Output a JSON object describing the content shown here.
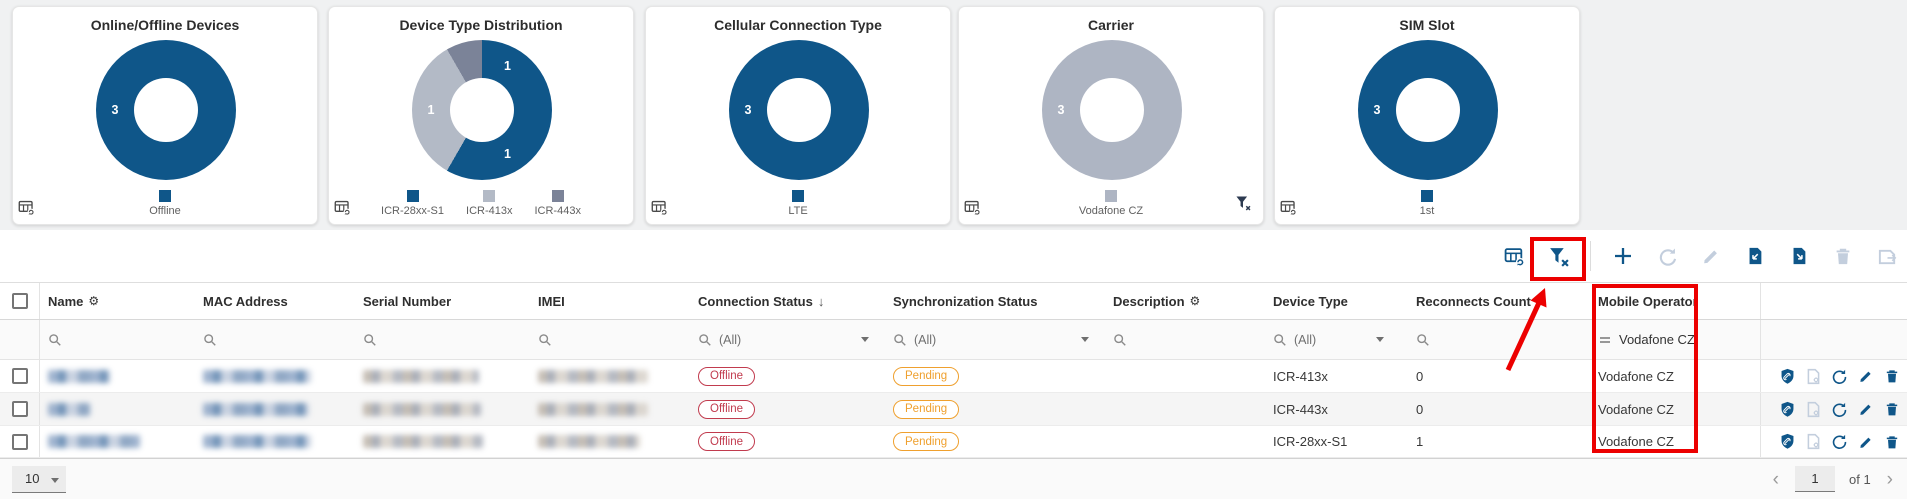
{
  "colors": {
    "brand_blue": "#0f5689",
    "light_slate": "#b3bac6",
    "dark_slate": "#7b8398",
    "annotation_red": "#ec0000",
    "offline_red": "#c13b4e",
    "pending_amber": "#efa02e",
    "disabled_icon": "#c3cedd"
  },
  "cards": [
    {
      "title": "Online/Offline Devices",
      "segments": [
        {
          "label": "Offline",
          "value": 3,
          "color": "#0f5689"
        }
      ]
    },
    {
      "title": "Device Type Distribution",
      "segments": [
        {
          "label": "ICR-28xx-S1",
          "value": 1,
          "color": "#0f5689"
        },
        {
          "label": "ICR-413x",
          "value": 1,
          "color": "#b3bac6"
        },
        {
          "label": "ICR-443x",
          "value": 1,
          "color": "#7b8398"
        }
      ]
    },
    {
      "title": "Cellular Connection Type",
      "segments": [
        {
          "label": "LTE",
          "value": 3,
          "color": "#0f5689"
        }
      ]
    },
    {
      "title": "Carrier",
      "has_filter_clear_icon": true,
      "segments": [
        {
          "label": "Vodafone CZ",
          "value": 3,
          "color": "#aeb5c3"
        }
      ]
    },
    {
      "title": "SIM Slot",
      "segments": [
        {
          "label": "1st",
          "value": 3,
          "color": "#0f5689"
        }
      ]
    }
  ],
  "chart_data": [
    {
      "type": "pie",
      "title": "Online/Offline Devices",
      "labels": [
        "Offline"
      ],
      "values": [
        3
      ]
    },
    {
      "type": "pie",
      "title": "Device Type Distribution",
      "labels": [
        "ICR-28xx-S1",
        "ICR-413x",
        "ICR-443x"
      ],
      "values": [
        1,
        1,
        1
      ]
    },
    {
      "type": "pie",
      "title": "Cellular Connection Type",
      "labels": [
        "LTE"
      ],
      "values": [
        3
      ]
    },
    {
      "type": "pie",
      "title": "Carrier",
      "labels": [
        "Vodafone CZ"
      ],
      "values": [
        3
      ]
    },
    {
      "type": "pie",
      "title": "SIM Slot",
      "labels": [
        "1st"
      ],
      "values": [
        3
      ]
    }
  ],
  "toolbar": {
    "icons": [
      {
        "name": "table-columns-refresh-icon",
        "enabled": true
      },
      {
        "name": "clear-filter-icon",
        "enabled": true,
        "annotated": true
      },
      {
        "name": "add-icon",
        "enabled": true
      },
      {
        "name": "refresh-icon",
        "enabled": false
      },
      {
        "name": "edit-icon",
        "enabled": false
      },
      {
        "name": "import-file-icon",
        "enabled": true
      },
      {
        "name": "export-file-icon",
        "enabled": true
      },
      {
        "name": "delete-icon",
        "enabled": false
      },
      {
        "name": "save-icon",
        "enabled": false
      }
    ]
  },
  "table": {
    "columns": [
      {
        "key": "select",
        "label": ""
      },
      {
        "key": "name",
        "label": "Name",
        "gear": true
      },
      {
        "key": "mac",
        "label": "MAC Address"
      },
      {
        "key": "serial",
        "label": "Serial Number"
      },
      {
        "key": "imei",
        "label": "IMEI"
      },
      {
        "key": "connection",
        "label": "Connection Status",
        "sort": "desc"
      },
      {
        "key": "sync",
        "label": "Synchronization Status"
      },
      {
        "key": "description",
        "label": "Description",
        "gear": true
      },
      {
        "key": "device_type",
        "label": "Device Type"
      },
      {
        "key": "reconnects",
        "label": "Reconnects Count"
      },
      {
        "key": "operator",
        "label": "Mobile Operator"
      },
      {
        "key": "actions",
        "label": ""
      }
    ],
    "filters": {
      "connection_all": "(All)",
      "sync_all": "(All)",
      "device_type_all": "(All)",
      "operator_value": "Vodafone CZ"
    },
    "rows": [
      {
        "connection": "Offline",
        "sync": "Pending",
        "device_type": "ICR-413x",
        "reconnects": "0",
        "operator": "Vodafone CZ",
        "redact": {
          "name": 62,
          "mac": 108,
          "serial": 116,
          "imei": 110
        }
      },
      {
        "connection": "Offline",
        "sync": "Pending",
        "device_type": "ICR-443x",
        "reconnects": "0",
        "operator": "Vodafone CZ",
        "redact": {
          "name": 42,
          "mac": 106,
          "serial": 118,
          "imei": 110
        }
      },
      {
        "connection": "Offline",
        "sync": "Pending",
        "device_type": "ICR-28xx-S1",
        "reconnects": "1",
        "operator": "Vodafone CZ",
        "redact": {
          "name": 92,
          "mac": 108,
          "serial": 120,
          "imei": 102
        }
      }
    ],
    "row_actions": [
      {
        "name": "shield-icon",
        "enabled": true
      },
      {
        "name": "file-config-icon",
        "enabled": false
      },
      {
        "name": "reboot-icon",
        "enabled": true
      },
      {
        "name": "edit-icon",
        "enabled": true
      },
      {
        "name": "delete-icon",
        "enabled": true
      }
    ]
  },
  "pagination": {
    "page_size": "10",
    "current_page": "1",
    "of_label": "of 1"
  }
}
